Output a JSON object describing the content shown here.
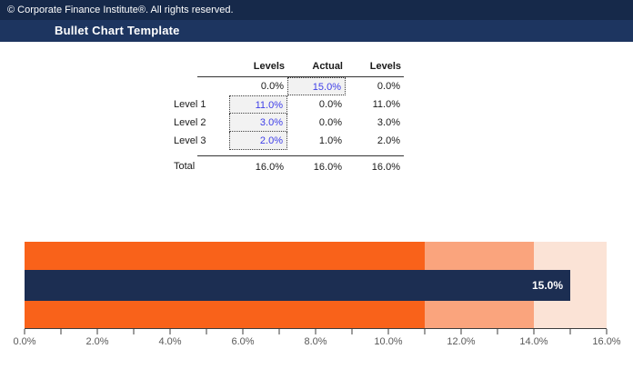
{
  "header": {
    "copyright": "© Corporate Finance Institute®. All rights reserved.",
    "title": "Bullet Chart Template"
  },
  "table": {
    "columns": {
      "c1": "Levels",
      "c2": "Actual",
      "c3": "Levels"
    },
    "rows": [
      {
        "label": "",
        "v1": "0.0%",
        "v2": "15.0%",
        "v3": "0.0%"
      },
      {
        "label": "Level 1",
        "v1": "11.0%",
        "v2": "0.0%",
        "v3": "11.0%"
      },
      {
        "label": "Level 2",
        "v1": "3.0%",
        "v2": "0.0%",
        "v3": "3.0%"
      },
      {
        "label": "Level 3",
        "v1": "2.0%",
        "v2": "1.0%",
        "v3": "2.0%"
      }
    ],
    "total": {
      "label": "Total",
      "v1": "16.0%",
      "v2": "16.0%",
      "v3": "16.0%"
    }
  },
  "chart_data": {
    "type": "bullet",
    "orientation": "horizontal",
    "title": "",
    "actual": {
      "value": 15.0,
      "label": "15.0%",
      "color": "#1C2E52"
    },
    "ranges": [
      {
        "name": "Level 1",
        "from": 0,
        "to": 11.0,
        "color": "#F9621A"
      },
      {
        "name": "Level 2",
        "from": 11.0,
        "to": 14.0,
        "color": "#FAA47D"
      },
      {
        "name": "Level 3",
        "from": 14.0,
        "to": 16.0,
        "color": "#FBE3D6"
      }
    ],
    "axis": {
      "min": 0,
      "max": 16,
      "minor_step": 1,
      "major_step": 2,
      "tick_labels": [
        "0.0%",
        "2.0%",
        "4.0%",
        "6.0%",
        "8.0%",
        "10.0%",
        "12.0%",
        "14.0%",
        "16.0%"
      ]
    },
    "legend": "none",
    "grid": false
  },
  "colors": {
    "header_top": "#16294A",
    "title_bar": "#1D3560",
    "input_text": "#3E3EE8",
    "input_bg": "#F2F2F2",
    "axis_label": "#595959"
  }
}
